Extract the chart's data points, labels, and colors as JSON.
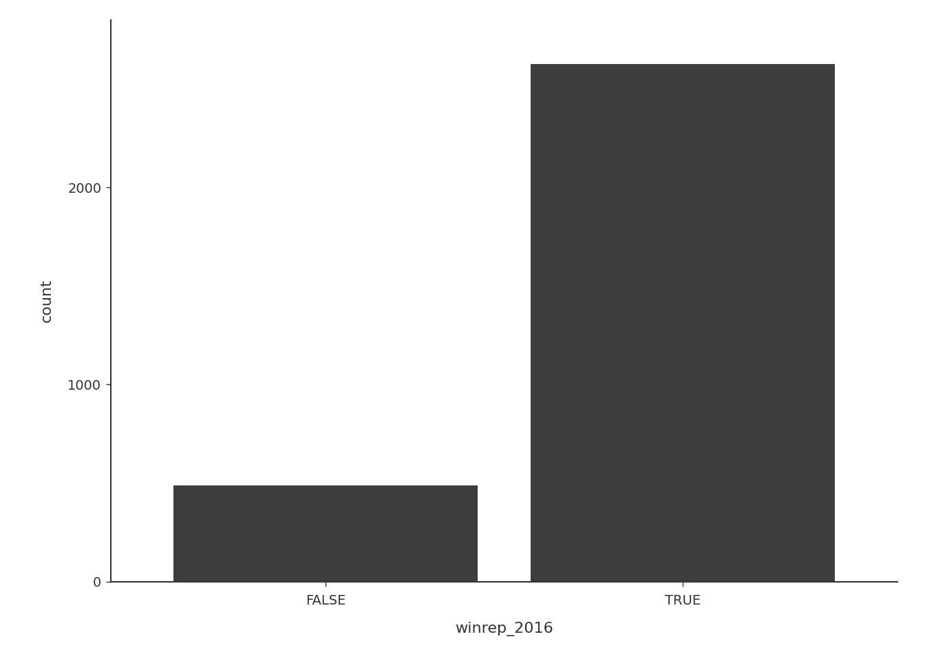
{
  "categories": [
    "FALSE",
    "TRUE"
  ],
  "values": [
    487,
    2626
  ],
  "bar_color": "#3d3d3d",
  "xlabel": "winrep_2016",
  "ylabel": "count",
  "background_color": "#ffffff",
  "yticks": [
    0,
    1000,
    2000
  ],
  "ylim": [
    0,
    2850
  ],
  "bar_width": 0.85,
  "xlabel_fontsize": 16,
  "ylabel_fontsize": 16,
  "tick_fontsize": 14,
  "spine_color": "#333333",
  "spine_linewidth": 1.5
}
